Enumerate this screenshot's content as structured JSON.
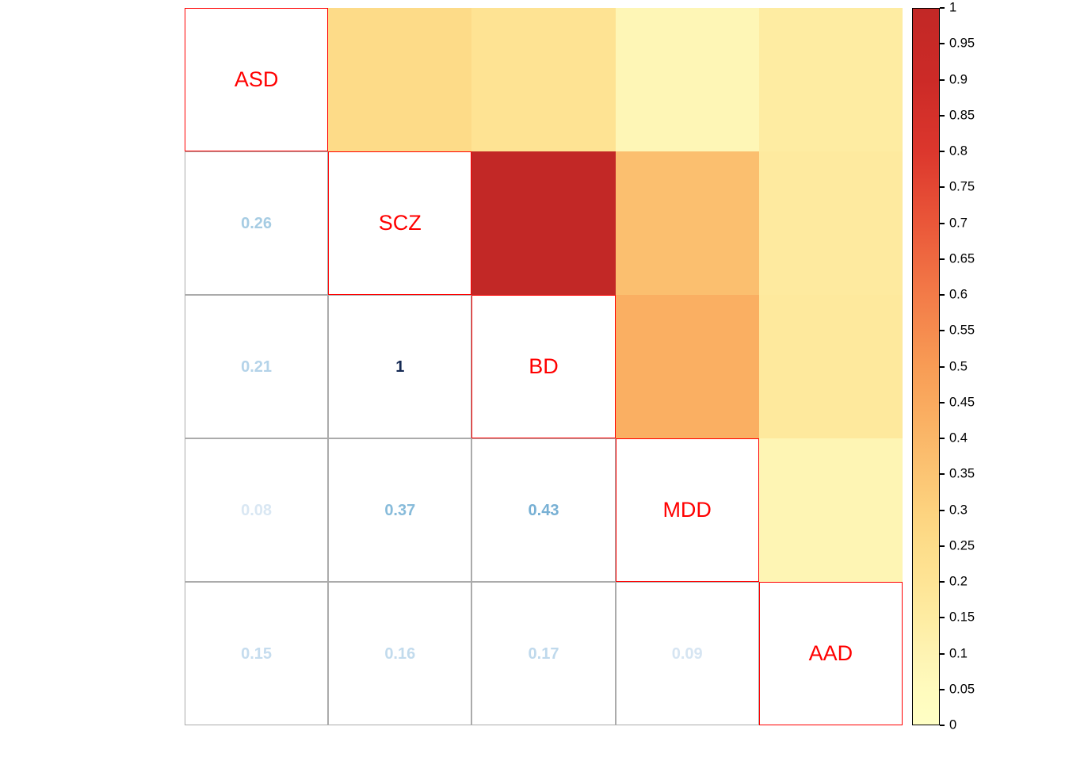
{
  "chart_data": {
    "type": "heatmap",
    "title": "",
    "description_visible": "correlation matrix with variable names on diagonal, numeric correlations in lower triangle, colored cells in upper triangle, color scale legend on right",
    "variables": [
      "ASD",
      "SCZ",
      "BD",
      "MDD",
      "AAD"
    ],
    "matrix": [
      [
        1.0,
        0.26,
        0.21,
        0.08,
        0.15
      ],
      [
        0.26,
        1.0,
        1.0,
        0.37,
        0.16
      ],
      [
        0.21,
        1.0,
        1.0,
        0.43,
        0.17
      ],
      [
        0.08,
        0.37,
        0.43,
        1.0,
        0.09
      ],
      [
        0.15,
        0.16,
        0.17,
        0.09,
        1.0
      ]
    ],
    "lower_triangle_labels": [
      [
        "0.26"
      ],
      [
        "0.21",
        "1"
      ],
      [
        "0.08",
        "0.37",
        "0.43"
      ],
      [
        "0.15",
        "0.16",
        "0.17",
        "0.09"
      ]
    ],
    "colorbar": {
      "min": 0,
      "max": 1,
      "position": "right",
      "tick_labels": [
        "1",
        "0.95",
        "0.9",
        "0.85",
        "0.8",
        "0.75",
        "0.7",
        "0.65",
        "0.6",
        "0.55",
        "0.5",
        "0.45",
        "0.4",
        "0.35",
        "0.3",
        "0.25",
        "0.2",
        "0.15",
        "0.1",
        "0.05",
        "0"
      ]
    },
    "colors": {
      "background": "#FFFFFF",
      "diagonal_label": "#FF0000",
      "diagonal_border": "#FF0000",
      "grid_border": "#ABABAB",
      "colorbar_border": "#000000",
      "fill_scale_stops": [
        {
          "t": 0.0,
          "color": "#FFFFC5"
        },
        {
          "t": 0.05,
          "color": "#FFFBBD"
        },
        {
          "t": 0.1,
          "color": "#FEF3B2"
        },
        {
          "t": 0.15,
          "color": "#FEECA2"
        },
        {
          "t": 0.2,
          "color": "#FEE495"
        },
        {
          "t": 0.25,
          "color": "#FDDD8A"
        },
        {
          "t": 0.3,
          "color": "#FDD27E"
        },
        {
          "t": 0.37,
          "color": "#FBBF6F"
        },
        {
          "t": 0.43,
          "color": "#FAAF62"
        },
        {
          "t": 0.5,
          "color": "#F89C55"
        },
        {
          "t": 0.6,
          "color": "#F37B48"
        },
        {
          "t": 0.7,
          "color": "#EA5739"
        },
        {
          "t": 0.8,
          "color": "#DC372D"
        },
        {
          "t": 0.9,
          "color": "#CC2A27"
        },
        {
          "t": 1.0,
          "color": "#C22826"
        }
      ],
      "number_scale_stops": [
        {
          "t": 0.0,
          "color": "#E2EDF7"
        },
        {
          "t": 0.08,
          "color": "#D9E7F3"
        },
        {
          "t": 0.15,
          "color": "#C5DCEE"
        },
        {
          "t": 0.21,
          "color": "#B4D3E9"
        },
        {
          "t": 0.26,
          "color": "#A6CCE3"
        },
        {
          "t": 0.37,
          "color": "#87BBDA"
        },
        {
          "t": 0.43,
          "color": "#77B0D4"
        },
        {
          "t": 0.6,
          "color": "#4D94C6"
        },
        {
          "t": 0.8,
          "color": "#2B6CAC"
        },
        {
          "t": 1.0,
          "color": "#152A54"
        }
      ]
    }
  }
}
